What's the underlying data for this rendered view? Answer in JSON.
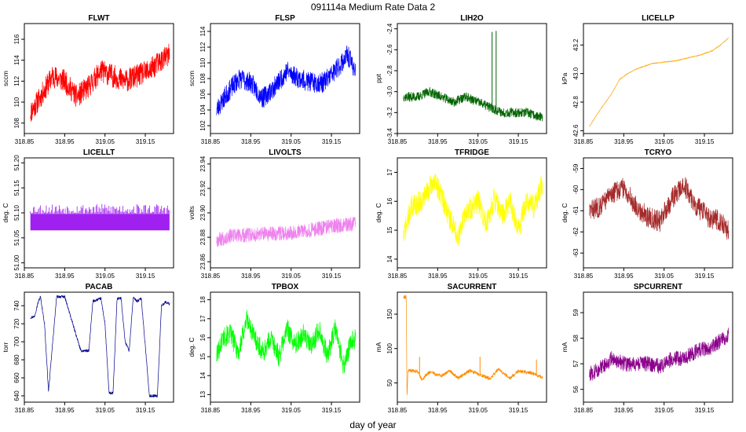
{
  "figure": {
    "title": "091114a   Medium Rate Data 2",
    "xlabel": "day of year"
  },
  "x_ticks": [
    "318.85",
    "318.95",
    "319.05",
    "319.15"
  ],
  "chart_data": [
    {
      "type": "line",
      "title": "FLWT",
      "ylabel": "sccm",
      "color": "#ff0000",
      "xlim": [
        318.85,
        319.22
      ],
      "ylim": [
        107,
        117.5
      ],
      "yticks": [
        108,
        110,
        112,
        114,
        116
      ],
      "ytick_labels": [
        "108",
        "110",
        "112",
        "114",
        "116"
      ],
      "x": [
        318.865,
        318.89,
        318.92,
        318.95,
        318.98,
        319.01,
        319.04,
        319.07,
        319.1,
        319.13,
        319.16,
        319.19,
        319.21
      ],
      "values": [
        109,
        110.5,
        112.5,
        112,
        110.5,
        111.5,
        113,
        112.5,
        112,
        112.5,
        113,
        114,
        114.5
      ],
      "noise": 2.2,
      "seed": 11
    },
    {
      "type": "line",
      "title": "FLSP",
      "ylabel": "sccm",
      "color": "#0000ff",
      "xlim": [
        318.85,
        319.22
      ],
      "ylim": [
        101,
        115
      ],
      "yticks": [
        102,
        104,
        106,
        108,
        110,
        112,
        114
      ],
      "ytick_labels": [
        "102",
        "104",
        "106",
        "108",
        "110",
        "112",
        "114"
      ],
      "x": [
        318.865,
        318.89,
        318.92,
        318.95,
        318.98,
        319.01,
        319.04,
        319.07,
        319.1,
        319.13,
        319.16,
        319.19,
        319.21
      ],
      "values": [
        104,
        106,
        108,
        107.5,
        105.5,
        107,
        109,
        108,
        107.5,
        107.5,
        109,
        111,
        109
      ],
      "noise": 2.6,
      "seed": 23
    },
    {
      "type": "line",
      "title": "LIH2O",
      "ylabel": "ppt",
      "color": "#006400",
      "xlim": [
        318.85,
        319.22
      ],
      "ylim": [
        -3.4,
        -2.35
      ],
      "yticks": [
        -3.4,
        -3.2,
        -3.0,
        -2.8,
        -2.6,
        -2.4
      ],
      "ytick_labels": [
        "-3.4",
        "-3.2",
        "-3.0",
        "-2.8",
        "-2.6",
        "-2.4"
      ],
      "x": [
        318.865,
        318.9,
        318.93,
        318.96,
        318.99,
        319.02,
        319.05,
        319.08,
        319.11,
        319.14,
        319.17,
        319.21
      ],
      "values": [
        -3.05,
        -3.05,
        -3.0,
        -3.05,
        -3.1,
        -3.05,
        -3.1,
        -3.15,
        -3.2,
        -3.2,
        -3.2,
        -3.25
      ],
      "noise": 0.09,
      "seed": 37,
      "spikes": [
        {
          "x": 319.085,
          "y": -2.43
        },
        {
          "x": 319.095,
          "y": -2.42
        }
      ]
    },
    {
      "type": "line",
      "title": "LICELLP",
      "ylabel": "kPa",
      "color": "#ffa500",
      "xlim": [
        318.85,
        319.22
      ],
      "ylim": [
        42.58,
        43.35
      ],
      "yticks": [
        42.6,
        42.8,
        43.0,
        43.2
      ],
      "ytick_labels": [
        "42.6",
        "42.8",
        "43.0",
        "43.2"
      ],
      "x": [
        318.865,
        318.89,
        318.92,
        318.94,
        318.96,
        318.98,
        319.0,
        319.02,
        319.05,
        319.08,
        319.11,
        319.14,
        319.17,
        319.19,
        319.21
      ],
      "values": [
        42.63,
        42.74,
        42.86,
        42.96,
        43.0,
        43.03,
        43.05,
        43.07,
        43.08,
        43.09,
        43.11,
        43.13,
        43.16,
        43.2,
        43.25
      ],
      "noise": 0.006,
      "seed": 41
    },
    {
      "type": "band",
      "title": "LICELLT",
      "ylabel": "deg. C",
      "color": "#a020f0",
      "xlim": [
        318.85,
        319.22
      ],
      "ylim": [
        50.99,
        51.21
      ],
      "yticks": [
        51.0,
        51.05,
        51.1,
        51.15,
        51.2
      ],
      "ytick_labels": [
        "51.00",
        "51.05",
        "51.10",
        "51.15",
        "51.20"
      ],
      "x": [
        318.865,
        319.21
      ],
      "values": [
        51.065,
        51.065
      ],
      "upper": 51.098,
      "upper_spread": 0.02,
      "seed": 53
    },
    {
      "type": "line",
      "title": "LIVOLTS",
      "ylabel": "volts",
      "color": "#ee82ee",
      "xlim": [
        318.85,
        319.22
      ],
      "ylim": [
        23.855,
        23.945
      ],
      "yticks": [
        23.86,
        23.88,
        23.9,
        23.92,
        23.94
      ],
      "ytick_labels": [
        "23.86",
        "23.88",
        "23.90",
        "23.92",
        "23.94"
      ],
      "x": [
        318.865,
        318.9,
        318.95,
        319.0,
        319.05,
        319.1,
        319.15,
        319.21
      ],
      "values": [
        23.878,
        23.881,
        23.882,
        23.883,
        23.884,
        23.886,
        23.889,
        23.891
      ],
      "noise": 0.012,
      "seed": 67
    },
    {
      "type": "line",
      "title": "TFRIDGE",
      "ylabel": "deg. C",
      "color": "#ffff00",
      "xlim": [
        318.85,
        319.22
      ],
      "ylim": [
        13.7,
        17.5
      ],
      "yticks": [
        14,
        15,
        16,
        17
      ],
      "ytick_labels": [
        "14",
        "15",
        "16",
        "17"
      ],
      "x": [
        318.865,
        318.885,
        318.91,
        318.94,
        318.96,
        318.98,
        319.0,
        319.02,
        319.05,
        319.07,
        319.09,
        319.11,
        319.13,
        319.15,
        319.17,
        319.19,
        319.21
      ],
      "values": [
        14.8,
        15.8,
        16.0,
        16.7,
        16.2,
        15.4,
        14.8,
        15.6,
        16.0,
        15.2,
        16.1,
        15.5,
        16.0,
        15.0,
        16.0,
        15.8,
        16.6
      ],
      "noise": 0.8,
      "seed": 71
    },
    {
      "type": "line",
      "title": "TCRYO",
      "ylabel": "deg. C",
      "color": "#a52a2a",
      "xlim": [
        318.85,
        319.22
      ],
      "ylim": [
        -63.7,
        -58.5
      ],
      "yticks": [
        -63,
        -62,
        -61,
        -60,
        -59
      ],
      "ytick_labels": [
        "-63",
        "-62",
        "-61",
        "-60",
        "-59"
      ],
      "x": [
        318.865,
        318.89,
        318.92,
        318.95,
        318.98,
        319.01,
        319.04,
        319.07,
        319.1,
        319.13,
        319.16,
        319.19,
        319.21
      ],
      "values": [
        -61.0,
        -60.8,
        -60.2,
        -59.9,
        -60.8,
        -61.3,
        -61.5,
        -60.4,
        -59.8,
        -60.8,
        -61.3,
        -61.5,
        -62.0
      ],
      "noise": 1.0,
      "seed": 83
    },
    {
      "type": "line",
      "title": "PACAB",
      "ylabel": "torr",
      "color": "#00008b",
      "xlim": [
        318.85,
        319.22
      ],
      "ylim": [
        633,
        755
      ],
      "yticks": [
        640,
        660,
        680,
        700,
        720,
        740
      ],
      "ytick_labels": [
        "640",
        "660",
        "680",
        "700",
        "720",
        "740"
      ],
      "x": [
        318.865,
        318.875,
        318.885,
        318.89,
        318.9,
        318.91,
        318.93,
        318.95,
        318.96,
        318.99,
        319.0,
        319.01,
        319.02,
        319.04,
        319.05,
        319.06,
        319.07,
        319.08,
        319.09,
        319.1,
        319.11,
        319.12,
        319.13,
        319.14,
        319.15,
        319.16,
        319.18,
        319.19,
        319.2,
        319.21
      ],
      "values": [
        727,
        728,
        745,
        750,
        720,
        645,
        750,
        750,
        735,
        690,
        690,
        690,
        745,
        748,
        720,
        643,
        643,
        748,
        748,
        700,
        690,
        749,
        745,
        748,
        695,
        640,
        640,
        740,
        744,
        742
      ],
      "noise": 3,
      "seed": 97
    },
    {
      "type": "line",
      "title": "TPBOX",
      "ylabel": "deg. C",
      "color": "#00ff00",
      "xlim": [
        318.85,
        319.22
      ],
      "ylim": [
        12.6,
        18.4
      ],
      "yticks": [
        13,
        14,
        15,
        16,
        17,
        18
      ],
      "ytick_labels": [
        "13",
        "14",
        "15",
        "16",
        "17",
        "18"
      ],
      "x": [
        318.865,
        318.88,
        318.9,
        318.92,
        318.94,
        318.96,
        318.98,
        319.0,
        319.02,
        319.04,
        319.06,
        319.08,
        319.1,
        319.12,
        319.14,
        319.16,
        319.18,
        319.2,
        319.21
      ],
      "values": [
        15.0,
        16.0,
        16.2,
        15.2,
        17.0,
        16.0,
        15.2,
        16.0,
        15.0,
        16.5,
        15.6,
        16.2,
        15.5,
        16.5,
        15.0,
        16.5,
        14.5,
        15.8,
        16.0
      ],
      "noise": 1.1,
      "seed": 101
    },
    {
      "type": "line",
      "title": "SACURRENT",
      "ylabel": "mA",
      "color": "#ff8c00",
      "xlim": [
        318.85,
        319.22
      ],
      "ylim": [
        22,
        182
      ],
      "yticks": [
        50,
        100,
        150
      ],
      "ytick_labels": [
        "50",
        "100",
        "150"
      ],
      "x": [
        318.865,
        318.872,
        318.874,
        318.876,
        318.9,
        318.91,
        318.93,
        318.96,
        318.98,
        319.0,
        319.03,
        319.05,
        319.08,
        319.1,
        319.13,
        319.15,
        319.18,
        319.21
      ],
      "values": [
        175,
        175,
        25,
        68,
        67,
        55,
        66,
        60,
        68,
        57,
        68,
        63,
        56,
        70,
        57,
        67,
        65,
        58
      ],
      "noise": 5,
      "seed": 113,
      "spikes": [
        {
          "x": 318.905,
          "y": 88
        },
        {
          "x": 319.055,
          "y": 88
        },
        {
          "x": 319.195,
          "y": 84
        }
      ]
    },
    {
      "type": "line",
      "title": "SPCURRENT",
      "ylabel": "mA",
      "color": "#8b008b",
      "xlim": [
        318.85,
        319.22
      ],
      "ylim": [
        55.5,
        59.8
      ],
      "yticks": [
        56,
        57,
        58,
        59
      ],
      "ytick_labels": [
        "56",
        "57",
        "58",
        "59"
      ],
      "x": [
        318.865,
        318.89,
        318.92,
        318.95,
        318.98,
        319.01,
        319.04,
        319.07,
        319.1,
        319.13,
        319.16,
        319.18,
        319.2,
        319.21
      ],
      "values": [
        56.6,
        56.8,
        57.2,
        57.0,
        57.0,
        57.0,
        56.9,
        57.2,
        57.2,
        57.5,
        57.6,
        57.8,
        58.0,
        58.2
      ],
      "noise": 0.6,
      "seed": 127
    }
  ]
}
